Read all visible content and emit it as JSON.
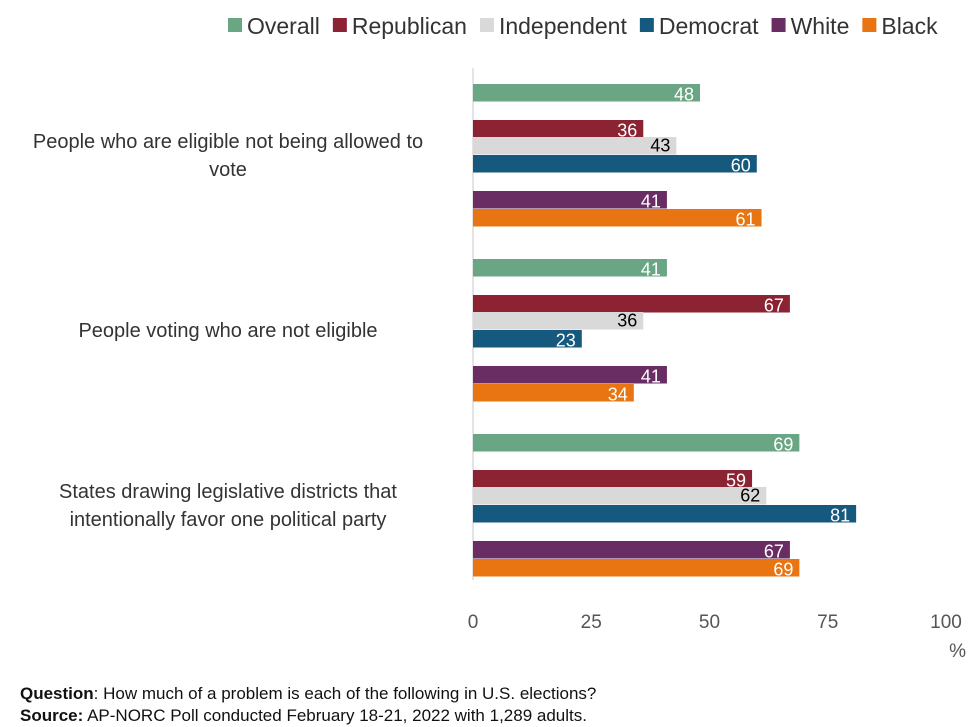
{
  "chart_data": {
    "type": "bar",
    "orientation": "horizontal",
    "categories": [
      "People who are eligible not being allowed to vote",
      "People voting who are not eligible",
      "States drawing legislative districts that intentionally favor one political party"
    ],
    "series": [
      {
        "name": "Overall",
        "color": "#6aa584",
        "values": [
          48,
          41,
          69
        ]
      },
      {
        "name": "Republican",
        "color": "#8b2332",
        "values": [
          36,
          67,
          59
        ]
      },
      {
        "name": "Independent",
        "color": "#d9d9d9",
        "values": [
          43,
          36,
          62
        ]
      },
      {
        "name": "Democrat",
        "color": "#16597e",
        "values": [
          60,
          23,
          81
        ]
      },
      {
        "name": "White",
        "color": "#6a2d63",
        "values": [
          41,
          41,
          67
        ]
      },
      {
        "name": "Black",
        "color": "#e87511",
        "values": [
          61,
          34,
          69
        ]
      }
    ],
    "x_ticks": [
      "0",
      "25",
      "50",
      "75",
      "100"
    ],
    "xlim": [
      0,
      100
    ],
    "x_unit": "%",
    "legend_position": "top",
    "grid": false
  },
  "notes": {
    "question_label": "Question",
    "question_text": ": How much of a problem is each of the following in U.S. elections?",
    "source_label": "Source:",
    "source_text": " AP-NORC Poll conducted February 18-21, 2022 with 1,289 adults."
  }
}
